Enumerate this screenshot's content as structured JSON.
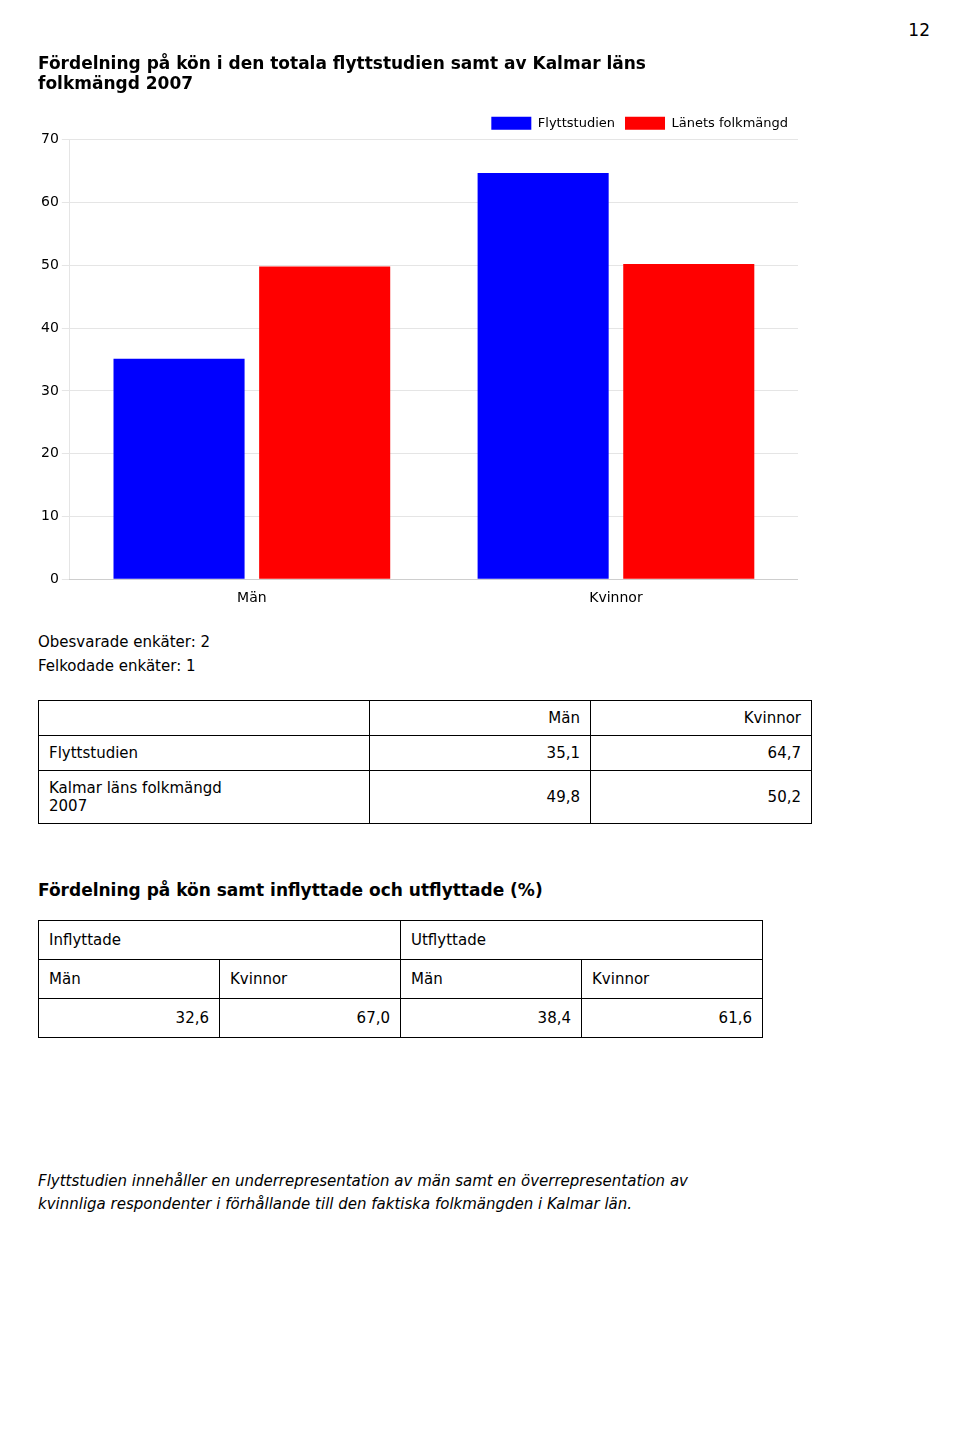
{
  "page_number": "12",
  "chart_data": {
    "type": "bar",
    "title": "Fördelning på kön i den totala flyttstudien samt av Kalmar läns\nfolkmängd 2007",
    "categories": [
      "Män",
      "Kvinnor"
    ],
    "series": [
      {
        "name": "Flyttstudien",
        "color": "#0000FF",
        "values": [
          35.1,
          64.7
        ]
      },
      {
        "name": "Länets folkmängd",
        "color": "#FF0000",
        "values": [
          49.8,
          50.2
        ]
      }
    ],
    "ylim": [
      0,
      70
    ],
    "yticks": [
      0,
      10,
      20,
      30,
      40,
      50,
      60,
      70
    ],
    "grid": true,
    "legend": "upper right"
  },
  "note": "Obesvarade enkäter: 2\nFelkodade enkäter: 1",
  "table1": {
    "rows": [
      [
        null,
        "Män",
        "Kvinnor"
      ],
      [
        "Flyttstudien",
        "35,1",
        "64,7"
      ],
      [
        "Kalmar läns folkmängd\n2007",
        "49,8",
        "50,2"
      ]
    ]
  },
  "section2_title": "Fördelning på kön samt inflyttade och utflyttade (%)",
  "table2": {
    "header_groups": [
      "Inflyttade",
      "Utflyttade"
    ],
    "header": [
      "Män",
      "Kvinnor",
      "Män",
      "Kvinnor"
    ],
    "values": [
      "32,6",
      "67,0",
      "38,4",
      "61,6"
    ]
  },
  "footer": "Flyttstudien innehåller en underrepresentation av män samt en överrepresentation av\nkvinnliga respondenter i förhållande till den faktiska folkmängden i Kalmar län."
}
